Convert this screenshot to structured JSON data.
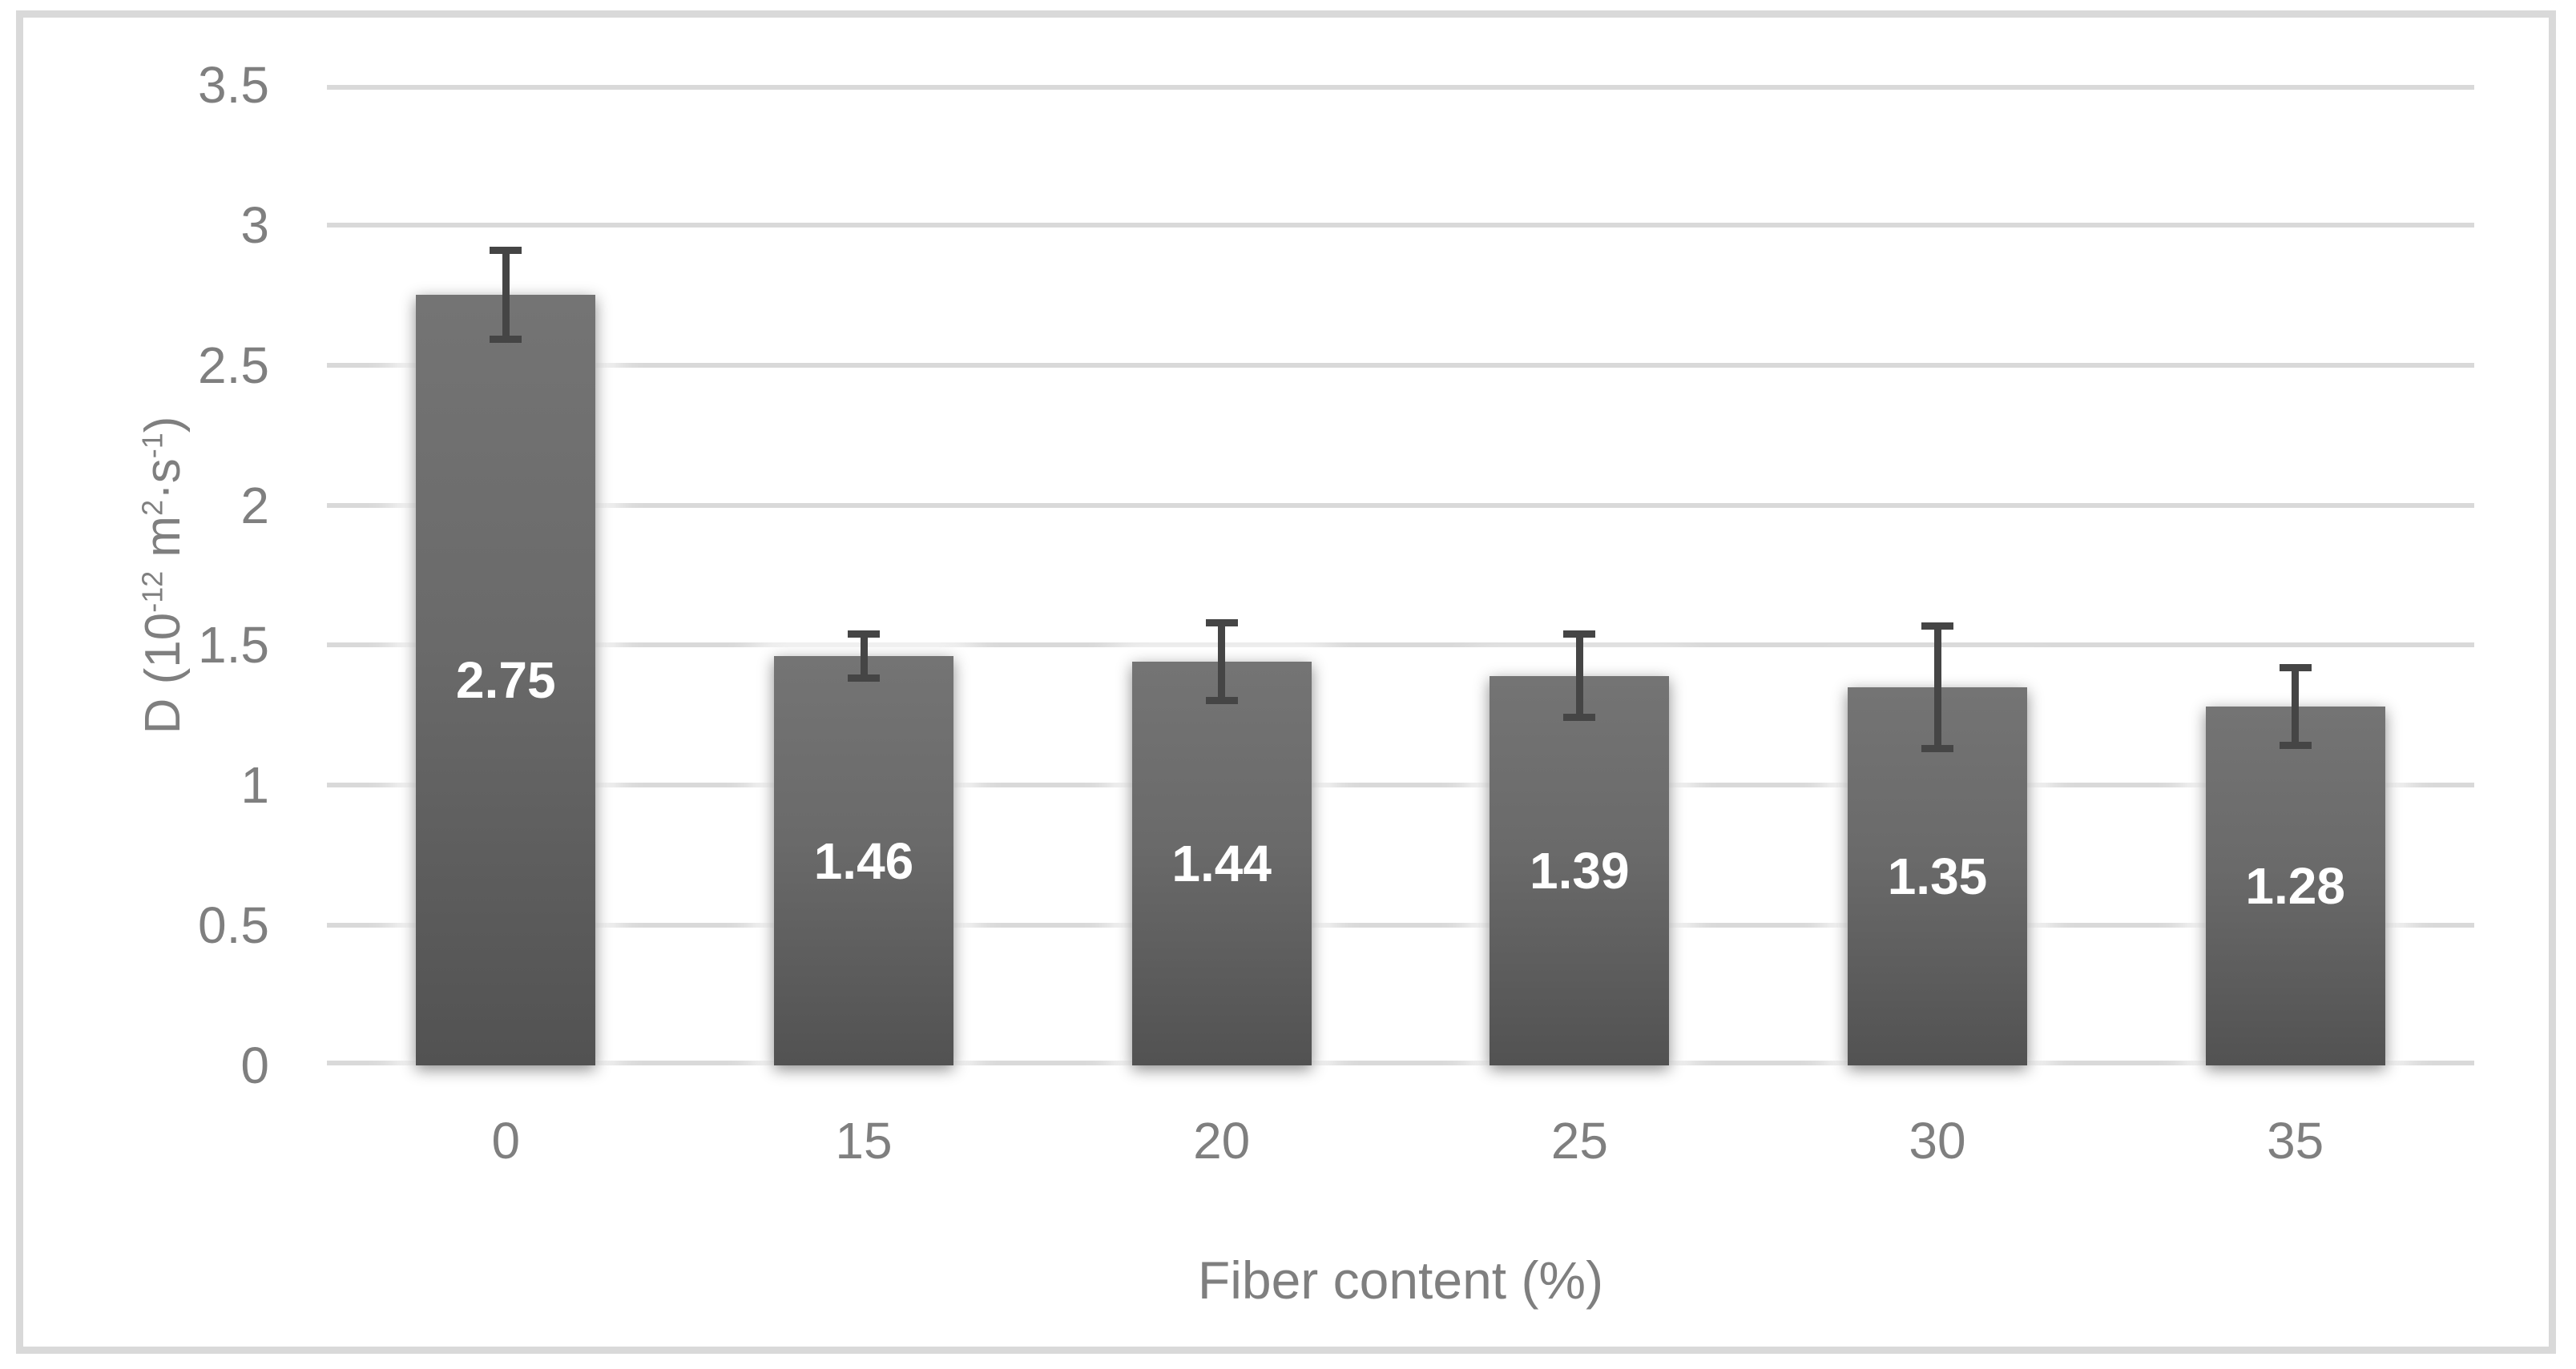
{
  "chart_data": {
    "type": "bar",
    "title": "",
    "xlabel": "Fiber content (%)",
    "ylabel": "D (10⁻¹² m²·s⁻¹)",
    "ylabel_parts": [
      {
        "text": "D (10"
      },
      {
        "text": "-12",
        "sup": true
      },
      {
        "text": " m"
      },
      {
        "text": "2",
        "sup": true
      },
      {
        "text": "·s"
      },
      {
        "text": "-1",
        "sup": true
      },
      {
        "text": ")"
      }
    ],
    "categories": [
      "0",
      "15",
      "20",
      "25",
      "30",
      "35"
    ],
    "values": [
      2.75,
      1.46,
      1.44,
      1.39,
      1.35,
      1.28
    ],
    "data_labels": [
      "2.75",
      "1.46",
      "1.44",
      "1.39",
      "1.35",
      "1.28"
    ],
    "error_plus": [
      0.16,
      0.08,
      0.14,
      0.15,
      0.22,
      0.14
    ],
    "error_minus": [
      0.16,
      0.08,
      0.14,
      0.15,
      0.22,
      0.14
    ],
    "ylim": [
      0,
      3.5
    ],
    "ytick_step": 0.5,
    "yticks": [
      "0",
      "0.5",
      "1",
      "1.5",
      "2",
      "2.5",
      "3",
      "3.5"
    ],
    "grid": true,
    "legend": false,
    "colors": {
      "bar_top": "#747474",
      "bar_bottom": "#525252",
      "error_bar": "#454545",
      "gridline": "#d9d9d9",
      "axis_text": "#7f7f7f",
      "data_label": "#ffffff",
      "frame_border": "#d9d9d9",
      "background": "#ffffff"
    }
  }
}
